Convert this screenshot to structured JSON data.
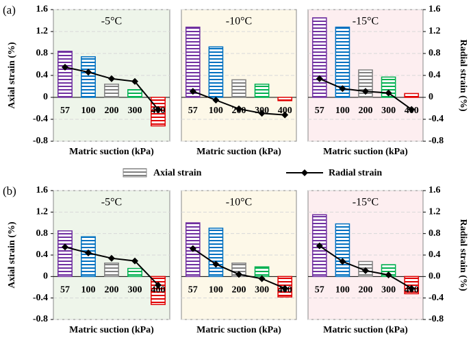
{
  "chart_data": [
    {
      "type": "bar",
      "panel_label": "(a)",
      "title": "-5°C",
      "xlabel": "Matric suction (kPa)",
      "ylabel": "Axial strain (%)",
      "background": "#eef5ea",
      "categories": [
        "57",
        "100",
        "200",
        "300",
        "400"
      ],
      "series": [
        {
          "name": "Axial strain",
          "colors": [
            "#7030a0",
            "#0070c0",
            "#808080",
            "#00b050",
            "#e00000"
          ],
          "values": [
            0.84,
            0.74,
            0.24,
            0.14,
            -0.52
          ]
        },
        {
          "name": "Radial strain",
          "color": "#000000",
          "axis": "y2",
          "values": [
            0.55,
            0.46,
            0.34,
            0.29,
            -0.22
          ]
        }
      ],
      "ylim": [
        -0.8,
        1.6
      ],
      "yticks": [
        -0.8,
        -0.4,
        0,
        0.4,
        0.8,
        1.2,
        1.6
      ],
      "y2lim": [
        -0.8,
        1.6
      ],
      "grid": true
    },
    {
      "type": "bar",
      "title": "-10°C",
      "xlabel": "Matric suction (kPa)",
      "background": "#fdf8e8",
      "categories": [
        "57",
        "100",
        "200",
        "300",
        "400"
      ],
      "series": [
        {
          "colors": [
            "#7030a0",
            "#0070c0",
            "#808080",
            "#00b050",
            "#e00000"
          ],
          "values": [
            1.28,
            0.92,
            0.32,
            0.24,
            -0.06
          ]
        },
        {
          "color": "#000000",
          "axis": "y2",
          "values": [
            0.11,
            -0.05,
            -0.21,
            -0.29,
            -0.32
          ]
        }
      ],
      "ylim": [
        -0.8,
        1.6
      ],
      "yticks": [
        -0.8,
        -0.4,
        0,
        0.4,
        0.8,
        1.2,
        1.6
      ],
      "y2lim": [
        -0.8,
        1.6
      ],
      "grid": true
    },
    {
      "type": "bar",
      "title": "-15°C",
      "xlabel": "Matric suction (kPa)",
      "y2label": "Radial strain (%)",
      "background": "#fdeef0",
      "categories": [
        "57",
        "100",
        "200",
        "300",
        "400"
      ],
      "series": [
        {
          "colors": [
            "#7030a0",
            "#0070c0",
            "#808080",
            "#00b050",
            "#e00000"
          ],
          "values": [
            1.45,
            1.28,
            0.5,
            0.37,
            0.07
          ]
        },
        {
          "color": "#000000",
          "axis": "y2",
          "values": [
            0.34,
            0.16,
            0.11,
            0.08,
            -0.22
          ]
        }
      ],
      "ylim": [
        -0.8,
        1.6
      ],
      "yticks": [
        -0.8,
        -0.4,
        0,
        0.4,
        0.8,
        1.2,
        1.6
      ],
      "y2lim": [
        -0.8,
        1.6
      ],
      "y2ticks": [
        -0.8,
        -0.4,
        0,
        0.4,
        0.8,
        1.2,
        1.6
      ],
      "grid": true
    },
    {
      "type": "bar",
      "panel_label": "(b)",
      "title": "-5°C",
      "xlabel": "Matric suction (kPa)",
      "ylabel": "Axial strain (%)",
      "background": "#eef5ea",
      "categories": [
        "57",
        "100",
        "200",
        "300",
        "400"
      ],
      "series": [
        {
          "colors": [
            "#7030a0",
            "#0070c0",
            "#808080",
            "#00b050",
            "#e00000"
          ],
          "values": [
            0.85,
            0.74,
            0.25,
            0.15,
            -0.52
          ]
        },
        {
          "color": "#000000",
          "axis": "y2",
          "values": [
            0.55,
            0.44,
            0.34,
            0.29,
            -0.16
          ]
        }
      ],
      "ylim": [
        -0.8,
        1.6
      ],
      "yticks": [
        -0.8,
        -0.4,
        0,
        0.4,
        0.8,
        1.2,
        1.6
      ],
      "y2lim": [
        -0.8,
        1.6
      ],
      "grid": true
    },
    {
      "type": "bar",
      "title": "-10°C",
      "xlabel": "Matric suction (kPa)",
      "background": "#fdf8e8",
      "categories": [
        "57",
        "100",
        "200",
        "300",
        "400"
      ],
      "series": [
        {
          "colors": [
            "#7030a0",
            "#0070c0",
            "#808080",
            "#00b050",
            "#e00000"
          ],
          "values": [
            1.0,
            0.9,
            0.25,
            0.18,
            -0.38
          ]
        },
        {
          "color": "#000000",
          "axis": "y2",
          "values": [
            0.52,
            0.23,
            0.04,
            -0.04,
            -0.22
          ]
        }
      ],
      "ylim": [
        -0.8,
        1.6
      ],
      "yticks": [
        -0.8,
        -0.4,
        0,
        0.4,
        0.8,
        1.2,
        1.6
      ],
      "y2lim": [
        -0.8,
        1.6
      ],
      "grid": true
    },
    {
      "type": "bar",
      "title": "-15°C",
      "xlabel": "Matric suction (kPa)",
      "y2label": "Radial strain (%)",
      "background": "#fdeef0",
      "categories": [
        "57",
        "100",
        "200",
        "300",
        "400"
      ],
      "series": [
        {
          "colors": [
            "#7030a0",
            "#0070c0",
            "#808080",
            "#00b050",
            "#e00000"
          ],
          "values": [
            1.15,
            0.98,
            0.28,
            0.22,
            -0.32
          ]
        },
        {
          "color": "#000000",
          "axis": "y2",
          "values": [
            0.57,
            0.28,
            0.11,
            0.03,
            -0.22
          ]
        }
      ],
      "ylim": [
        -0.8,
        1.6
      ],
      "yticks": [
        -0.8,
        -0.4,
        0,
        0.4,
        0.8,
        1.2,
        1.6
      ],
      "y2lim": [
        -0.8,
        1.6
      ],
      "y2ticks": [
        -0.8,
        -0.4,
        {
          "value": 0,
          "label": "0.0"
        },
        0.4,
        0.8,
        1.2,
        1.6
      ],
      "grid": true
    }
  ]
}
